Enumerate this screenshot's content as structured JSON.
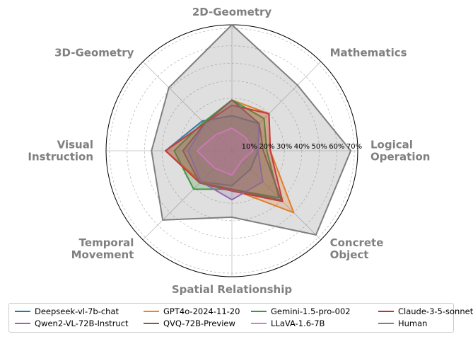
{
  "chart_data": {
    "type": "radar",
    "title": "",
    "axes": [
      "2D-Geometry",
      "Mathematics",
      "Logical\nOperation",
      "Concrete\nObject",
      "Spatial Relationship",
      "Temporal\nMovement",
      "Visual\nInstruction",
      "3D-Geometry"
    ],
    "ticks": [
      10,
      20,
      30,
      40,
      50,
      60,
      70
    ],
    "tick_labels": [
      "10%",
      "20%",
      "30%",
      "40%",
      "50%",
      "60%",
      "70%"
    ],
    "rmax": 72,
    "grid": true,
    "legend_placement": "bottom",
    "series": [
      {
        "name": "Deepseek-vl-7b-chat",
        "color": "#1f77b4",
        "values": [
          20,
          22,
          15,
          15,
          20,
          25,
          38,
          24
        ]
      },
      {
        "name": "GPT4o-2024-11-20",
        "color": "#ff7f0e",
        "values": [
          29,
          30,
          22,
          50,
          22,
          25,
          38,
          22
        ]
      },
      {
        "name": "Gemini-1.5-pro-002",
        "color": "#2ca02c",
        "values": [
          29,
          26,
          20,
          38,
          22,
          31,
          33,
          23
        ]
      },
      {
        "name": "Claude-3-5-sonnet",
        "color": "#d62728",
        "values": [
          26,
          30,
          22,
          41,
          23,
          26,
          38,
          22
        ]
      },
      {
        "name": "Qwen2-VL-72B-Instruct",
        "color": "#9467bd",
        "values": [
          29,
          22,
          15,
          25,
          28,
          25,
          25,
          22
        ]
      },
      {
        "name": "QVQ-72B-Preview",
        "color": "#8c564b",
        "values": [
          29,
          22,
          18,
          40,
          22,
          26,
          28,
          22
        ]
      },
      {
        "name": "LLaVA-1.6-7B",
        "color": "#e377c2",
        "values": [
          13,
          11,
          12,
          8,
          14,
          14,
          20,
          13
        ]
      },
      {
        "name": "Human",
        "color": "#7f7f7f",
        "values": [
          72,
          53,
          68,
          68,
          38,
          56,
          46,
          51
        ]
      }
    ]
  }
}
